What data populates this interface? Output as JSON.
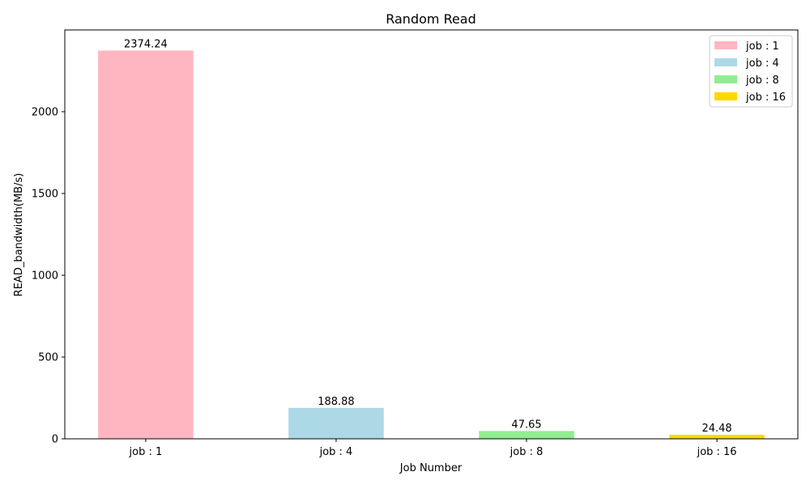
{
  "chart_data": {
    "type": "bar",
    "title": "Random Read",
    "xlabel": "Job Number",
    "ylabel": "READ_bandwidth(MB/s)",
    "categories": [
      "job : 1",
      "job : 4",
      "job : 8",
      "job : 16"
    ],
    "values": [
      2374.24,
      188.88,
      47.65,
      24.48
    ],
    "value_labels": [
      "2374.24",
      "188.88",
      "47.65",
      "24.48"
    ],
    "colors": [
      "#ffb6c1",
      "#add8e6",
      "#90ee90",
      "#ffd700"
    ],
    "ylim": [
      0,
      2500
    ],
    "yticks": [
      0,
      500,
      1000,
      1500,
      2000
    ],
    "grid": false,
    "legend": {
      "placement": "top-right",
      "entries": [
        "job : 1",
        "job : 4",
        "job : 8",
        "job : 16"
      ]
    }
  }
}
